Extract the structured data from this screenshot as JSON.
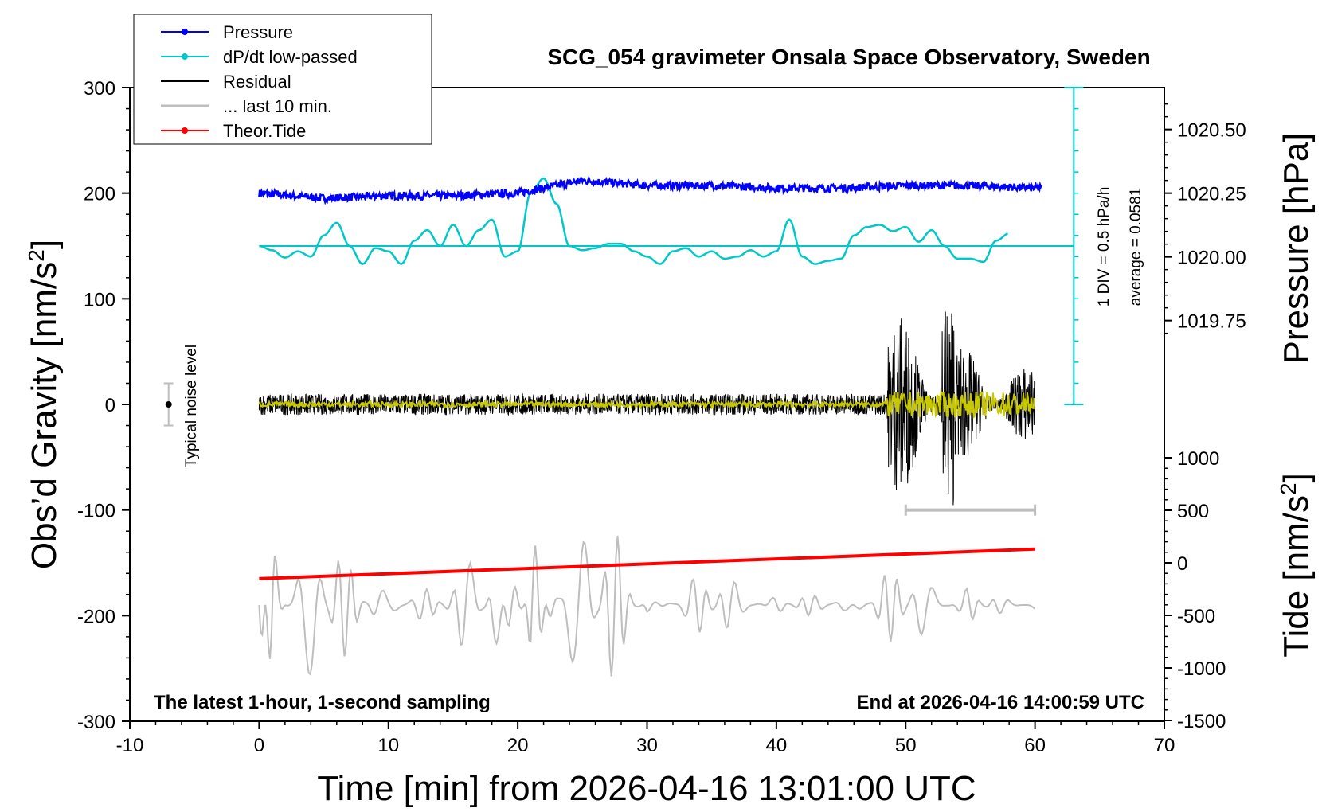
{
  "chart_data": {
    "type": "line",
    "title": "SCG_054 gravimeter Onsala Space Observatory, Sweden",
    "xlabel": "Time [min] from 2026-04-16 13:01:00 UTC",
    "ylabel": "Obs’d Gravity [nm/s",
    "ylabel_sup": "2",
    "ylabel_close": "]",
    "y2label_pressure": "Pressure [hPa]",
    "y2label_tide": "Tide [nm/s",
    "y2label_tide_sup": "2",
    "y2label_tide_close": "]",
    "xlim": [
      -10,
      70
    ],
    "ylim": [
      -300,
      300
    ],
    "x_ticks": [
      "-10",
      "0",
      "10",
      "20",
      "30",
      "40",
      "50",
      "60",
      "70"
    ],
    "y_ticks": [
      "300",
      "200",
      "100",
      "0",
      "-100",
      "-200",
      "-300"
    ],
    "pressure_ticks": [
      "1020.50",
      "1020.25",
      "1020.00",
      "1019.75"
    ],
    "tide_ticks": [
      "1000",
      "500",
      "0",
      "-500",
      "-1000",
      "-1500"
    ],
    "legend": {
      "placement": "top-left",
      "entries": [
        {
          "label": "Pressure",
          "color": "#0000ff",
          "marker": true
        },
        {
          "label": "dP/dt low-passed",
          "color": "#00c8c8",
          "marker": true
        },
        {
          "label": "Residual",
          "color": "#000000",
          "marker": false
        },
        {
          "label": "... last 10 min.",
          "color": "#bebebe",
          "marker": false
        },
        {
          "label": "Theor.Tide",
          "color": "#ff0000",
          "marker": true
        }
      ]
    },
    "annotations": {
      "bottom_left": "The latest 1-hour, 1-second sampling",
      "bottom_right": "End at 2026-04-16 14:00:59 UTC",
      "noise_label": "Typical noise level",
      "div_label": "1 DIV = 0.5 hPa/h",
      "average_label": "average = 0.0581"
    },
    "colors": {
      "pressure": "#0000ff",
      "dpdt": "#00c8c8",
      "residual": "#000000",
      "residual_lowpass": "#c8c800",
      "last10": "#bebebe",
      "tide": "#ff0000"
    },
    "series": [
      {
        "name": "Pressure",
        "x": [
          0,
          5,
          10,
          15,
          20,
          25,
          30,
          35,
          40,
          45,
          50,
          55,
          60
        ],
        "values": [
          1020.25,
          1020.23,
          1020.24,
          1020.24,
          1020.25,
          1020.3,
          1020.28,
          1020.28,
          1020.27,
          1020.27,
          1020.28,
          1020.28,
          1020.27
        ]
      },
      {
        "name": "dP/dt low-passed",
        "x": [
          0,
          1,
          2,
          3,
          4,
          5,
          6,
          7,
          8,
          9,
          10,
          11,
          12,
          13,
          14,
          15,
          16,
          17,
          18,
          19,
          20,
          21,
          22,
          23,
          24,
          25,
          26,
          27,
          28,
          29,
          30,
          31,
          32,
          33,
          34,
          35,
          36,
          37,
          38,
          39,
          40,
          41,
          42,
          43,
          44,
          45,
          46,
          47,
          48,
          49,
          50,
          51,
          52,
          53,
          54,
          55,
          56,
          57,
          58
        ],
        "values": [
          150,
          146,
          139,
          145,
          140,
          160,
          172,
          150,
          133,
          148,
          145,
          133,
          155,
          165,
          150,
          170,
          150,
          165,
          175,
          140,
          145,
          200,
          214,
          190,
          150,
          146,
          148,
          152,
          152,
          145,
          140,
          133,
          145,
          148,
          140,
          145,
          138,
          140,
          146,
          140,
          145,
          175,
          140,
          133,
          136,
          138,
          160,
          168,
          170,
          164,
          168,
          154,
          165,
          150,
          138,
          138,
          135,
          155,
          162
        ]
      },
      {
        "name": "Residual",
        "x": [
          0,
          10,
          20,
          30,
          40,
          48,
          49,
          50,
          52,
          53,
          55,
          57,
          60
        ],
        "values": [
          5,
          -5,
          5,
          -5,
          5,
          -5,
          100,
          -90,
          80,
          -110,
          60,
          -40,
          20
        ]
      },
      {
        "name": "... last 10 min.",
        "x": [
          0,
          1,
          2,
          3,
          5,
          7,
          10,
          15,
          17,
          18,
          20,
          21,
          23,
          27,
          30,
          35,
          40,
          45,
          50,
          55,
          60
        ],
        "values": [
          -265,
          -105,
          -190,
          -140,
          -100,
          -150,
          -180,
          -170,
          -110,
          -260,
          -105,
          -280,
          -130,
          -100,
          -200,
          -150,
          -200,
          -200,
          -140,
          -210,
          -185
        ]
      },
      {
        "name": "Theor.Tide",
        "x": [
          0,
          60
        ],
        "values": [
          -165,
          -137
        ]
      }
    ]
  }
}
